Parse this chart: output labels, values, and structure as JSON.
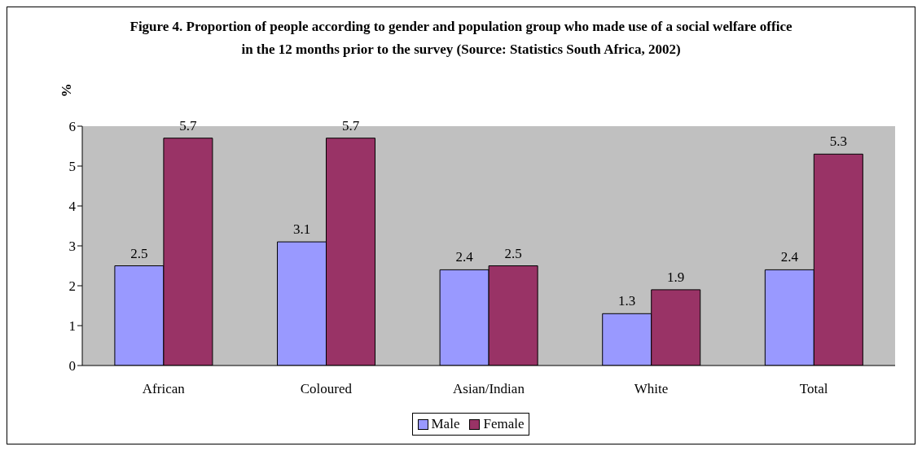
{
  "chart_data": {
    "type": "bar",
    "title": "Figure 4. Proportion of people according to gender and population group who made use of a social welfare office in the 12 months prior to the survey (Source: Statistics South Africa, 2002)",
    "ylabel": "%",
    "categories": [
      "African",
      "Coloured",
      "Asian/Indian",
      "White",
      "Total"
    ],
    "series": [
      {
        "name": "Male",
        "color": "#9999ff",
        "values": [
          2.5,
          3.1,
          2.4,
          1.3,
          2.4
        ]
      },
      {
        "name": "Female",
        "color": "#993366",
        "values": [
          5.7,
          5.7,
          2.5,
          1.9,
          5.3
        ]
      }
    ],
    "ylim": [
      0,
      6
    ],
    "yticks": [
      0,
      1,
      2,
      3,
      4,
      5,
      6
    ],
    "data_labels": true,
    "legend": "bottom"
  }
}
